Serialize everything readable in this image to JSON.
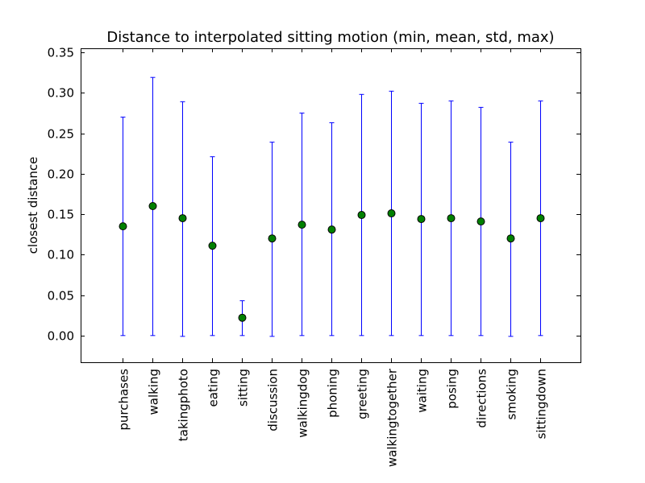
{
  "chart_data": {
    "type": "scatter",
    "title": "Distance to interpolated sitting motion (min, mean, std, max)",
    "xlabel": "",
    "ylabel": "closest distance",
    "ylim": [
      -0.033,
      0.355
    ],
    "yticks": [
      0.0,
      0.05,
      0.1,
      0.15,
      0.2,
      0.25,
      0.3,
      0.35
    ],
    "ytick_labels": [
      "0.00",
      "0.05",
      "0.10",
      "0.15",
      "0.20",
      "0.25",
      "0.30",
      "0.35"
    ],
    "grid": false,
    "categories": [
      "purchases",
      "walking",
      "takingphoto",
      "eating",
      "sitting",
      "discussion",
      "walkingdog",
      "phoning",
      "greeting",
      "walkingtogether",
      "waiting",
      "posing",
      "directions",
      "smoking",
      "sittingdown"
    ],
    "mean": [
      0.135,
      0.16,
      0.145,
      0.111,
      0.022,
      0.12,
      0.137,
      0.131,
      0.149,
      0.151,
      0.144,
      0.145,
      0.141,
      0.12,
      0.145
    ],
    "min": [
      0.0,
      0.0,
      -0.001,
      0.0,
      0.0,
      -0.001,
      0.0,
      0.0,
      0.0,
      0.0,
      0.0,
      0.0,
      0.0,
      -0.001,
      0.0
    ],
    "max": [
      0.27,
      0.319,
      0.289,
      0.221,
      0.043,
      0.239,
      0.275,
      0.263,
      0.298,
      0.302,
      0.287,
      0.29,
      0.282,
      0.239,
      0.29
    ],
    "colors": {
      "errorbar": "#0000ff",
      "marker_fill": "#008000",
      "marker_edge": "#000000",
      "axes": "#000000"
    }
  }
}
